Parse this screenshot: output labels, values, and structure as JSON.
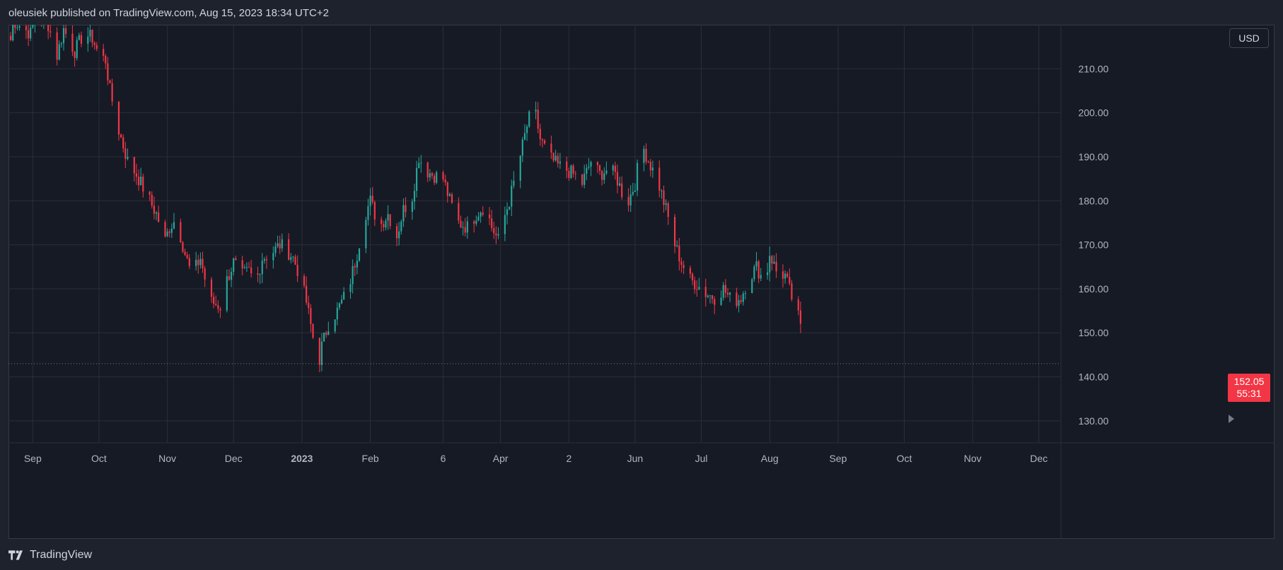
{
  "header": {
    "publish_line": "oleusiek published on TradingView.com, Aug 15, 2023 18:34 UTC+2"
  },
  "footer": {
    "brand": "TradingView"
  },
  "currency_button": "USD",
  "last_price": {
    "price": "152.05",
    "countdown": "55:31"
  },
  "colors": {
    "up": "#26a69a",
    "down": "#f23645",
    "background": "#161a25",
    "grid": "#2a2e39",
    "axis_text": "#b2b5be"
  },
  "icons": {
    "brand_logo": "tradingview-logo-icon",
    "scroll_arrow": "triangle-right-icon"
  },
  "chart_data": {
    "type": "candlestick",
    "title": "",
    "xlabel": "",
    "ylabel": "",
    "ylim": [
      125,
      220
    ],
    "y_ticks": [
      "210.00",
      "200.00",
      "190.00",
      "180.00",
      "170.00",
      "160.00",
      "150.00",
      "140.00",
      "130.00"
    ],
    "x_ticks": [
      {
        "label": "Sep",
        "date": "2022-09-01"
      },
      {
        "label": "Oct",
        "date": "2022-10-01"
      },
      {
        "label": "Nov",
        "date": "2022-11-01"
      },
      {
        "label": "Dec",
        "date": "2022-12-01"
      },
      {
        "label": "2023",
        "date": "2023-01-01"
      },
      {
        "label": "Feb",
        "date": "2023-02-01"
      },
      {
        "label": "6",
        "date": "2023-03-06"
      },
      {
        "label": "Apr",
        "date": "2023-04-01"
      },
      {
        "label": "2",
        "date": "2023-05-02"
      },
      {
        "label": "Jun",
        "date": "2023-06-01"
      },
      {
        "label": "Jul",
        "date": "2023-07-01"
      },
      {
        "label": "Aug",
        "date": "2023-08-01"
      },
      {
        "label": "Sep",
        "date": "2023-09-01"
      },
      {
        "label": "Oct",
        "date": "2023-10-01"
      },
      {
        "label": "Nov",
        "date": "2023-11-01"
      },
      {
        "label": "Dec",
        "date": "2023-12-01"
      }
    ],
    "bold_x_tick": "2023",
    "reference_line": {
      "value": 143.0,
      "style": "dotted"
    },
    "last_value": 152.05,
    "x_range": [
      "2022-08-21",
      "2023-12-11"
    ],
    "path_dates": [
      "2022-08-21",
      "2022-08-23",
      "2022-08-31",
      "2022-09-02",
      "2022-09-08",
      "2022-09-12",
      "2022-09-15",
      "2022-09-20",
      "2022-09-24",
      "2022-09-28",
      "2022-10-01",
      "2022-10-04",
      "2022-10-06",
      "2022-10-10",
      "2022-10-14",
      "2022-10-18",
      "2022-10-23",
      "2022-10-27",
      "2022-10-31",
      "2022-11-02",
      "2022-11-05",
      "2022-11-09",
      "2022-11-12",
      "2022-11-16",
      "2022-11-19",
      "2022-11-21",
      "2022-11-25",
      "2022-11-28",
      "2022-12-01",
      "2022-12-05",
      "2022-12-08",
      "2022-12-11",
      "2022-12-14",
      "2022-12-18",
      "2022-12-22",
      "2022-12-25",
      "2022-12-28",
      "2022-12-31",
      "2023-01-03",
      "2023-01-06",
      "2023-01-09",
      "2023-01-10",
      "2023-01-13",
      "2023-01-17",
      "2023-01-22",
      "2023-01-26",
      "2023-01-29",
      "2023-02-01",
      "2023-02-05",
      "2023-02-09",
      "2023-02-13",
      "2023-02-16",
      "2023-02-20",
      "2023-02-23",
      "2023-02-26",
      "2023-03-01",
      "2023-03-06",
      "2023-03-09",
      "2023-03-13",
      "2023-03-17",
      "2023-03-21",
      "2023-03-25",
      "2023-03-28",
      "2023-03-31",
      "2023-04-02",
      "2023-04-05",
      "2023-04-09",
      "2023-04-13",
      "2023-04-16",
      "2023-04-19",
      "2023-04-23",
      "2023-04-27",
      "2023-05-01",
      "2023-05-04",
      "2023-05-08",
      "2023-05-12",
      "2023-05-16",
      "2023-05-19",
      "2023-05-23",
      "2023-05-26",
      "2023-05-29",
      "2023-06-01",
      "2023-06-04",
      "2023-06-08",
      "2023-06-11",
      "2023-06-15",
      "2023-06-19",
      "2023-06-22",
      "2023-06-26",
      "2023-06-29",
      "2023-07-03",
      "2023-07-07",
      "2023-07-11",
      "2023-07-15",
      "2023-07-19",
      "2023-07-22",
      "2023-07-26",
      "2023-07-30",
      "2023-08-01",
      "2023-08-04",
      "2023-08-08",
      "2023-08-11",
      "2023-08-15"
    ],
    "path_values": [
      212,
      221,
      218,
      222,
      220,
      213,
      219,
      214,
      218,
      217,
      213,
      212,
      205,
      196,
      189,
      186,
      181,
      177,
      171,
      174,
      176,
      168,
      163,
      167,
      160,
      157,
      156,
      162,
      166,
      163,
      164,
      161,
      167,
      168,
      170,
      169,
      167,
      163,
      157,
      149,
      144,
      147,
      152,
      155,
      160,
      168,
      176,
      180,
      174,
      177,
      172,
      178,
      181,
      190,
      187,
      186,
      185,
      180,
      175,
      174,
      177,
      179,
      174,
      171,
      175,
      180,
      188,
      197,
      202,
      194,
      190,
      188,
      187,
      186,
      184,
      189,
      186,
      187,
      186,
      182,
      180,
      184,
      193,
      188,
      185,
      178,
      170,
      166,
      162,
      161,
      159,
      158,
      160,
      157,
      158,
      162,
      165,
      161,
      168,
      164,
      163,
      158,
      152.05
    ]
  }
}
